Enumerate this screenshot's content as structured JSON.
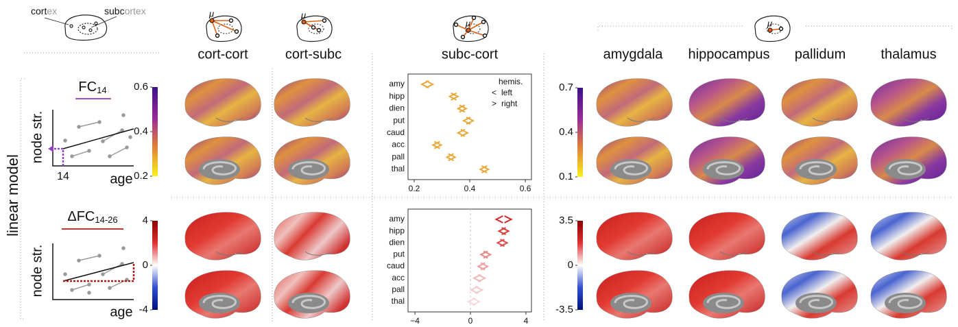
{
  "header": {
    "cortex": [
      "cort",
      "ex"
    ],
    "subcortex": [
      "subc",
      "ortex"
    ],
    "mu": "μ"
  },
  "columns": [
    "cort-cort",
    "cort-subc",
    "subc-cort",
    "amygdala",
    "hippocampus",
    "pallidum",
    "thalamus"
  ],
  "row_label": "linear model",
  "rows": [
    {
      "title": "FC",
      "title_sub": "14",
      "ylabel": "node str.",
      "xlabel": "age",
      "x_marker": "14",
      "colorbars": [
        {
          "colormap": "plasma",
          "lim": [
            0.2,
            0.6
          ],
          "ticks": [
            0.6,
            0.4,
            0.2
          ]
        },
        {
          "colormap": "plasma",
          "lim": [
            0.1,
            0.7
          ],
          "ticks": [
            0.7,
            0.4,
            0.1
          ]
        }
      ]
    },
    {
      "title": "ΔFC",
      "title_sub": "14-26",
      "ylabel": "node str.",
      "xlabel": "age",
      "colorbars": [
        {
          "colormap": "diverging",
          "lim": [
            -4,
            4
          ],
          "ticks": [
            4,
            0,
            -4
          ]
        },
        {
          "colormap": "diverging",
          "lim": [
            -3.5,
            3.5
          ],
          "ticks": [
            3.5,
            0,
            -3.5
          ]
        }
      ]
    }
  ],
  "chart_data": [
    {
      "type": "dot",
      "categories": [
        "amy",
        "hipp",
        "dien",
        "put",
        "caud",
        "acc",
        "pall",
        "thal"
      ],
      "xlim": [
        0.178,
        0.622
      ],
      "xticks": [
        0.2,
        0.4,
        0.6
      ],
      "legend": "top-right",
      "legend_title": "hemis.",
      "series": [
        {
          "name": "left",
          "marker": "<",
          "color": "#e8a838",
          "values": [
            0.24,
            0.34,
            0.37,
            0.39,
            0.37,
            0.28,
            0.33,
            0.45
          ]
        },
        {
          "name": "right",
          "marker": ">",
          "color": "#e8a838",
          "values": [
            0.255,
            0.345,
            0.375,
            0.4,
            0.38,
            0.285,
            0.335,
            0.455
          ]
        }
      ]
    },
    {
      "type": "dot",
      "categories": [
        "amy",
        "hipp",
        "dien",
        "put",
        "caud",
        "acc",
        "pall",
        "thal"
      ],
      "xlim": [
        -4.5,
        4.4
      ],
      "xticks": [
        {
          "value": -4,
          "label": "−4"
        },
        0,
        4
      ],
      "zero_line": true,
      "point_colors": [
        "#d62728",
        "#d93a3a",
        "#dd4a4a",
        "#e68a8a",
        "#eaa0a0",
        "#efb6b6",
        "#f3c8c8",
        "#f5d8d8"
      ],
      "series": [
        {
          "marker": "<",
          "values": [
            2.1,
            2.3,
            2.2,
            1.0,
            0.8,
            0.5,
            0.3,
            0.1
          ]
        },
        {
          "marker": ">",
          "values": [
            2.7,
            2.5,
            2.4,
            1.2,
            1.0,
            0.8,
            0.6,
            0.4
          ]
        }
      ]
    }
  ]
}
